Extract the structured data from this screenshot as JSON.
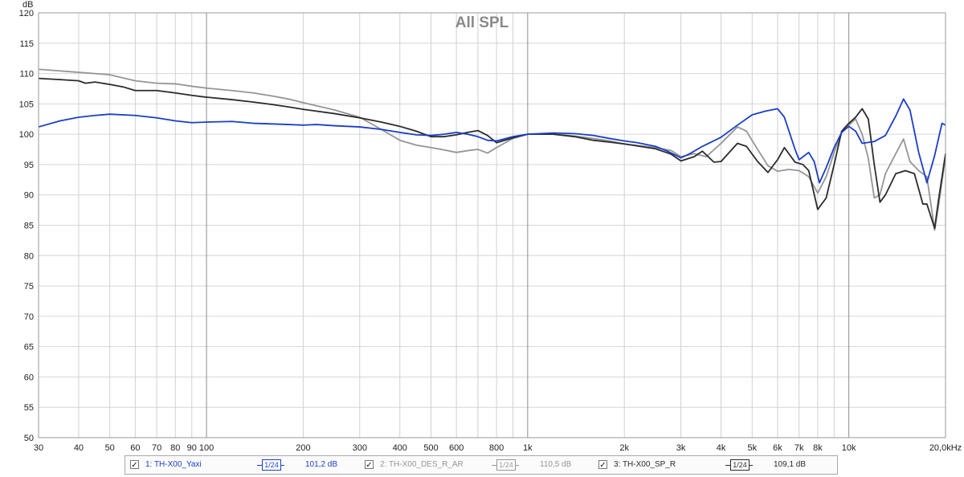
{
  "chart_data": {
    "type": "line",
    "title": "All SPL",
    "ylabel": "dB",
    "xscale": "log",
    "xlim": [
      30,
      20000
    ],
    "ylim": [
      50,
      120
    ],
    "grid": true,
    "y_ticks": [
      "50",
      "55",
      "60",
      "65",
      "70",
      "75",
      "80",
      "85",
      "90",
      "95",
      "100",
      "105",
      "110",
      "115",
      "120"
    ],
    "x_ticks": [
      {
        "v": 30,
        "label": "30"
      },
      {
        "v": 40,
        "label": "40"
      },
      {
        "v": 50,
        "label": "50"
      },
      {
        "v": 60,
        "label": "60"
      },
      {
        "v": 70,
        "label": "70"
      },
      {
        "v": 80,
        "label": "80"
      },
      {
        "v": 90,
        "label": "90"
      },
      {
        "v": 100,
        "label": "100"
      },
      {
        "v": 200,
        "label": "200"
      },
      {
        "v": 300,
        "label": "300"
      },
      {
        "v": 400,
        "label": "400"
      },
      {
        "v": 500,
        "label": "500"
      },
      {
        "v": 600,
        "label": "600"
      },
      {
        "v": 800,
        "label": "800"
      },
      {
        "v": 1000,
        "label": "1k"
      },
      {
        "v": 2000,
        "label": "2k"
      },
      {
        "v": 3000,
        "label": "3k"
      },
      {
        "v": 4000,
        "label": "4k"
      },
      {
        "v": 5000,
        "label": "5k"
      },
      {
        "v": 6000,
        "label": "6k"
      },
      {
        "v": 7000,
        "label": "7k"
      },
      {
        "v": 8000,
        "label": "8k"
      },
      {
        "v": 10000,
        "label": "10k"
      },
      {
        "v": 20000,
        "label": "20,0kHz"
      }
    ],
    "series": [
      {
        "name": "1: TH-X00_Yaxi",
        "color": "#1a3dc8",
        "points": [
          [
            30,
            101.2
          ],
          [
            35,
            102.2
          ],
          [
            40,
            102.8
          ],
          [
            45,
            103.1
          ],
          [
            50,
            103.3
          ],
          [
            60,
            103.1
          ],
          [
            70,
            102.7
          ],
          [
            80,
            102.2
          ],
          [
            90,
            101.9
          ],
          [
            100,
            102.0
          ],
          [
            120,
            102.1
          ],
          [
            140,
            101.8
          ],
          [
            160,
            101.7
          ],
          [
            180,
            101.6
          ],
          [
            200,
            101.5
          ],
          [
            220,
            101.6
          ],
          [
            250,
            101.4
          ],
          [
            300,
            101.2
          ],
          [
            350,
            100.8
          ],
          [
            400,
            100.3
          ],
          [
            450,
            99.9
          ],
          [
            500,
            99.8
          ],
          [
            550,
            100.0
          ],
          [
            600,
            100.3
          ],
          [
            650,
            100.0
          ],
          [
            700,
            99.6
          ],
          [
            750,
            99.0
          ],
          [
            800,
            98.9
          ],
          [
            900,
            99.6
          ],
          [
            1000,
            100.0
          ],
          [
            1200,
            100.2
          ],
          [
            1400,
            100.1
          ],
          [
            1600,
            99.8
          ],
          [
            1800,
            99.3
          ],
          [
            2000,
            98.9
          ],
          [
            2200,
            98.6
          ],
          [
            2500,
            98.0
          ],
          [
            2700,
            97.3
          ],
          [
            2900,
            96.5
          ],
          [
            3000,
            96.1
          ],
          [
            3200,
            96.8
          ],
          [
            3500,
            98.0
          ],
          [
            4000,
            99.5
          ],
          [
            4500,
            101.5
          ],
          [
            5000,
            103.2
          ],
          [
            5500,
            103.8
          ],
          [
            6000,
            104.2
          ],
          [
            6300,
            102.8
          ],
          [
            6800,
            97.5
          ],
          [
            7000,
            95.8
          ],
          [
            7500,
            97.0
          ],
          [
            7800,
            95.5
          ],
          [
            8100,
            92.0
          ],
          [
            8500,
            94.5
          ],
          [
            9000,
            97.8
          ],
          [
            9500,
            100.3
          ],
          [
            10000,
            101.3
          ],
          [
            10500,
            100.5
          ],
          [
            11000,
            98.5
          ],
          [
            12000,
            98.8
          ],
          [
            13000,
            99.8
          ],
          [
            14000,
            103.0
          ],
          [
            14800,
            105.8
          ],
          [
            15500,
            104.0
          ],
          [
            16500,
            97.0
          ],
          [
            17500,
            92.0
          ],
          [
            18500,
            96.5
          ],
          [
            19500,
            101.8
          ],
          [
            20000,
            101.5
          ]
        ]
      },
      {
        "name": "2: TH-X00_DES_R_AR",
        "color": "#959595",
        "points": [
          [
            30,
            110.7
          ],
          [
            40,
            110.2
          ],
          [
            50,
            109.8
          ],
          [
            60,
            108.8
          ],
          [
            70,
            108.4
          ],
          [
            80,
            108.3
          ],
          [
            90,
            107.9
          ],
          [
            100,
            107.6
          ],
          [
            120,
            107.2
          ],
          [
            140,
            106.8
          ],
          [
            160,
            106.3
          ],
          [
            180,
            105.8
          ],
          [
            200,
            105.2
          ],
          [
            250,
            104.0
          ],
          [
            300,
            102.8
          ],
          [
            350,
            100.8
          ],
          [
            400,
            99.0
          ],
          [
            450,
            98.2
          ],
          [
            500,
            97.8
          ],
          [
            550,
            97.4
          ],
          [
            600,
            97.0
          ],
          [
            650,
            97.3
          ],
          [
            700,
            97.5
          ],
          [
            750,
            96.9
          ],
          [
            800,
            97.8
          ],
          [
            900,
            99.3
          ],
          [
            1000,
            100.0
          ],
          [
            1200,
            100.0
          ],
          [
            1400,
            99.7
          ],
          [
            1600,
            99.3
          ],
          [
            1800,
            98.9
          ],
          [
            2000,
            98.4
          ],
          [
            2500,
            97.8
          ],
          [
            2800,
            97.3
          ],
          [
            3000,
            96.3
          ],
          [
            3300,
            96.8
          ],
          [
            3600,
            96.3
          ],
          [
            4000,
            98.5
          ],
          [
            4500,
            101.2
          ],
          [
            4800,
            100.5
          ],
          [
            5200,
            97.5
          ],
          [
            5600,
            94.8
          ],
          [
            6000,
            93.9
          ],
          [
            6500,
            94.2
          ],
          [
            7000,
            94.0
          ],
          [
            7500,
            93.0
          ],
          [
            8000,
            90.3
          ],
          [
            8500,
            93.0
          ],
          [
            9000,
            97.0
          ],
          [
            9500,
            100.3
          ],
          [
            10000,
            101.5
          ],
          [
            10500,
            102.5
          ],
          [
            11000,
            100.0
          ],
          [
            11500,
            96.0
          ],
          [
            12000,
            89.5
          ],
          [
            12500,
            90.0
          ],
          [
            13000,
            93.5
          ],
          [
            14000,
            96.8
          ],
          [
            14800,
            99.2
          ],
          [
            15500,
            95.5
          ],
          [
            16500,
            94.0
          ],
          [
            17500,
            93.0
          ],
          [
            18500,
            84.2
          ],
          [
            19000,
            88.0
          ],
          [
            20000,
            96.3
          ]
        ]
      },
      {
        "name": "3: TH-X00_SP_R",
        "color": "#2b2b2b",
        "points": [
          [
            30,
            109.2
          ],
          [
            35,
            109.0
          ],
          [
            40,
            108.8
          ],
          [
            42,
            108.4
          ],
          [
            45,
            108.6
          ],
          [
            50,
            108.2
          ],
          [
            55,
            107.8
          ],
          [
            60,
            107.2
          ],
          [
            70,
            107.2
          ],
          [
            80,
            106.8
          ],
          [
            90,
            106.4
          ],
          [
            100,
            106.1
          ],
          [
            120,
            105.7
          ],
          [
            140,
            105.3
          ],
          [
            160,
            104.9
          ],
          [
            180,
            104.5
          ],
          [
            200,
            104.1
          ],
          [
            250,
            103.4
          ],
          [
            300,
            102.7
          ],
          [
            350,
            102.0
          ],
          [
            400,
            101.3
          ],
          [
            450,
            100.5
          ],
          [
            500,
            99.6
          ],
          [
            550,
            99.6
          ],
          [
            600,
            99.9
          ],
          [
            650,
            100.3
          ],
          [
            700,
            100.6
          ],
          [
            750,
            99.8
          ],
          [
            800,
            98.6
          ],
          [
            900,
            99.4
          ],
          [
            1000,
            100.0
          ],
          [
            1200,
            100.0
          ],
          [
            1400,
            99.6
          ],
          [
            1600,
            99.0
          ],
          [
            1800,
            98.7
          ],
          [
            2000,
            98.4
          ],
          [
            2500,
            97.6
          ],
          [
            2800,
            96.7
          ],
          [
            3000,
            95.6
          ],
          [
            3300,
            96.3
          ],
          [
            3500,
            97.2
          ],
          [
            3800,
            95.4
          ],
          [
            4000,
            95.5
          ],
          [
            4500,
            98.5
          ],
          [
            4800,
            98.0
          ],
          [
            5200,
            95.5
          ],
          [
            5600,
            93.7
          ],
          [
            6000,
            95.8
          ],
          [
            6300,
            97.8
          ],
          [
            6800,
            95.4
          ],
          [
            7200,
            95.0
          ],
          [
            7500,
            94.0
          ],
          [
            8000,
            87.6
          ],
          [
            8500,
            89.5
          ],
          [
            9000,
            95.0
          ],
          [
            9500,
            100.5
          ],
          [
            10000,
            101.8
          ],
          [
            10500,
            102.8
          ],
          [
            11000,
            104.2
          ],
          [
            11500,
            102.5
          ],
          [
            12000,
            95.0
          ],
          [
            12500,
            88.8
          ],
          [
            13000,
            90.0
          ],
          [
            14000,
            93.5
          ],
          [
            15000,
            94.0
          ],
          [
            16000,
            93.5
          ],
          [
            17000,
            88.5
          ],
          [
            17500,
            88.5
          ],
          [
            18500,
            84.5
          ],
          [
            19000,
            89.0
          ],
          [
            20000,
            96.8
          ]
        ]
      }
    ]
  },
  "legend": {
    "entries": [
      {
        "check": "✓",
        "label": "1: TH-X00_Yaxi",
        "smoothing": "1/24",
        "value": "101,2 dB",
        "color": "#1a3dc8"
      },
      {
        "check": "✓",
        "label": "2: TH-X00_DES_R_AR",
        "smoothing": "1/24",
        "value": "110,5 dB",
        "color": "#959595"
      },
      {
        "check": "✓",
        "label": "3: TH-X00_SP_R",
        "smoothing": "1/24",
        "value": "109,1 dB",
        "color": "#2b2b2b"
      }
    ]
  }
}
